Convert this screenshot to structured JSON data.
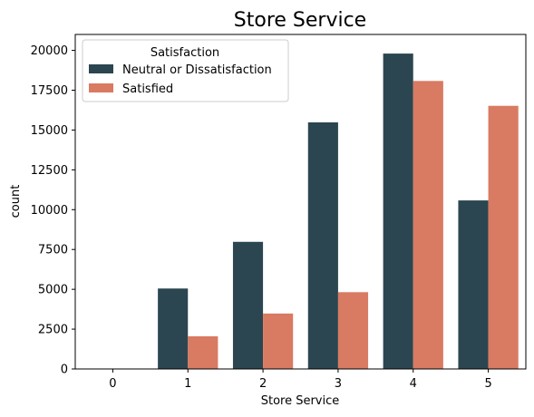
{
  "chart_data": {
    "type": "bar",
    "title": "Store Service",
    "xlabel": "Store Service",
    "ylabel": "count",
    "categories": [
      "0",
      "1",
      "2",
      "3",
      "4",
      "5"
    ],
    "series": [
      {
        "name": "Neutral or Dissatisfaction",
        "color": "#2b4650",
        "values": [
          0,
          5050,
          7980,
          15480,
          19800,
          10580
        ]
      },
      {
        "name": "Satisfied",
        "color": "#d97a62",
        "values": [
          0,
          2050,
          3480,
          4820,
          18080,
          16520
        ]
      }
    ],
    "ylim": [
      0,
      21000
    ],
    "yticks": [
      0,
      2500,
      5000,
      7500,
      10000,
      12500,
      15000,
      17500,
      20000
    ],
    "legend": {
      "title": "Satisfaction",
      "placement": "top-left"
    },
    "grid": false
  }
}
